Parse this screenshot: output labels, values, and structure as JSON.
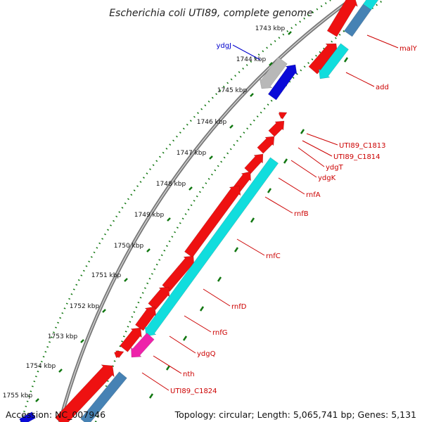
{
  "title": "Escherichia coli UTI89, complete genome",
  "accession": "Accession: NC_007946",
  "topology": "Topology: circular; Length: 5,065,741 bp; Genes: 5,131",
  "colors": {
    "forward_gene": "#ee1111",
    "reverse_gene": "#11dddd",
    "steel_gene": "#4682b4",
    "gray_gene": "#b8b8b8",
    "blue_gene": "#0a0ad8",
    "magenta_gene": "#ee22aa",
    "backbone": "#777777",
    "tick": "#117711",
    "label_red": "#cc0000",
    "label_blue": "#0000cc"
  },
  "ticks": [
    {
      "label": "1743 kbp"
    },
    {
      "label": "1744 kbp"
    },
    {
      "label": "1745 kbp"
    },
    {
      "label": "1746 kbp"
    },
    {
      "label": "1747 kbp"
    },
    {
      "label": "1748 kbp"
    },
    {
      "label": "1749 kbp"
    },
    {
      "label": "1750 kbp"
    },
    {
      "label": "1751 kbp"
    },
    {
      "label": "1752 kbp"
    },
    {
      "label": "1753 kbp"
    },
    {
      "label": "1754 kbp"
    },
    {
      "label": "1755 kbp"
    }
  ],
  "gene_labels": [
    {
      "text": "malY"
    },
    {
      "text": "add"
    },
    {
      "text": "ydgJ"
    },
    {
      "text": "UTI89_C1813"
    },
    {
      "text": "UTI89_C1814"
    },
    {
      "text": "ydgT"
    },
    {
      "text": "ydgK"
    },
    {
      "text": "rnfA"
    },
    {
      "text": "rnfB"
    },
    {
      "text": "rnfC"
    },
    {
      "text": "rnfD"
    },
    {
      "text": "rnfG"
    },
    {
      "text": "ydgQ"
    },
    {
      "text": "nth"
    },
    {
      "text": "UTI89_C1824"
    }
  ]
}
